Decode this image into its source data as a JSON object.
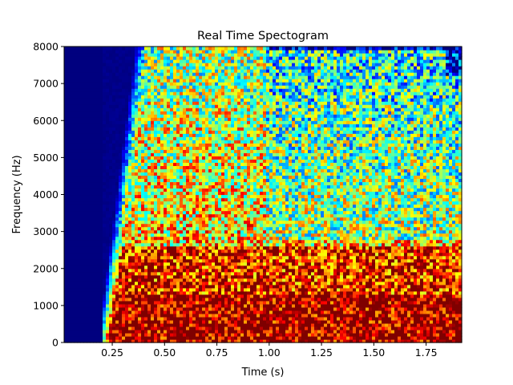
{
  "chart_data": {
    "type": "heatmap",
    "title": "Real Time Spectogram",
    "xlabel": "Time (s)",
    "ylabel": "Frequency (Hz)",
    "xlim": [
      0.02,
      1.92
    ],
    "ylim": [
      0,
      8000
    ],
    "xticks": [
      0.25,
      0.5,
      0.75,
      1.0,
      1.25,
      1.5,
      1.75
    ],
    "xtick_labels": [
      "0.25",
      "0.50",
      "0.75",
      "1.00",
      "1.25",
      "1.50",
      "1.75"
    ],
    "yticks": [
      0,
      1000,
      2000,
      3000,
      4000,
      5000,
      6000,
      7000,
      8000
    ],
    "ytick_labels": [
      "0",
      "1000",
      "2000",
      "3000",
      "4000",
      "5000",
      "6000",
      "7000",
      "8000"
    ],
    "colormap": "jet",
    "colorscale": [
      "#00007f",
      "#0000ff",
      "#007fff",
      "#00ffff",
      "#7fff7f",
      "#ffff00",
      "#ff7f00",
      "#ff0000",
      "#7f0000"
    ],
    "grid": false,
    "legend": "none",
    "energy_profile": {
      "silence_before_s": 0.2,
      "onset_s": [
        0.2,
        0.38
      ],
      "segment_boundary_s": 0.98,
      "saturated_band_hz": [
        0,
        1300
      ],
      "high_energy_band_hz": [
        1300,
        2600
      ],
      "mid_energy_band_hz": [
        2600,
        6500
      ],
      "upper_band_hz": [
        6500,
        8000
      ]
    }
  }
}
